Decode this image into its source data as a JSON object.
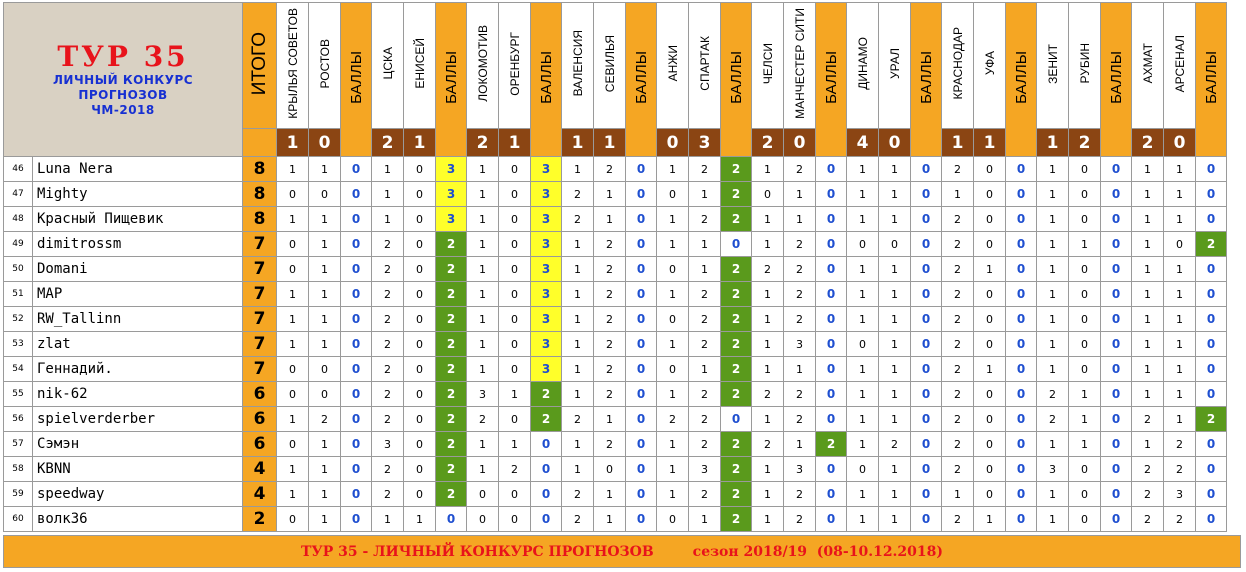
{
  "header": {
    "title": "ТУР  35",
    "subtitle_lines": [
      "ЛИЧНЫЙ  КОНКУРС",
      "ПРОГНОЗОВ",
      "ЧМ-2018"
    ],
    "total_label": "ИТОГО",
    "points_label": "БАЛЛЫ"
  },
  "matches": [
    {
      "home": "КРЫЛЬЯ СОВЕТОВ",
      "away": "РОСТОВ",
      "home_goals": "1",
      "away_goals": "0"
    },
    {
      "home": "ЦСКА",
      "away": "ЕНИСЕЙ",
      "home_goals": "2",
      "away_goals": "1"
    },
    {
      "home": "ЛОКОМОТИВ",
      "away": "ОРЕНБУРГ",
      "home_goals": "2",
      "away_goals": "1"
    },
    {
      "home": "ВАЛЕНСИЯ",
      "away": "СЕВИЛЬЯ",
      "home_goals": "1",
      "away_goals": "1"
    },
    {
      "home": "АНЖИ",
      "away": "СПАРТАК",
      "home_goals": "0",
      "away_goals": "3"
    },
    {
      "home": "ЧЕЛСИ",
      "away": "МАНЧЕСТЕР СИТИ",
      "home_goals": "2",
      "away_goals": "0"
    },
    {
      "home": "ДИНАМО",
      "away": "УРАЛ",
      "home_goals": "4",
      "away_goals": "0"
    },
    {
      "home": "КРАСНОДАР",
      "away": "УФА",
      "home_goals": "1",
      "away_goals": "1"
    },
    {
      "home": "ЗЕНИТ",
      "away": "РУБИН",
      "home_goals": "1",
      "away_goals": "2"
    },
    {
      "home": "АХМАТ",
      "away": "АРСЕНАЛ",
      "home_goals": "2",
      "away_goals": "0"
    }
  ],
  "rows": [
    {
      "num": "46",
      "name": "Luna Nera",
      "total": "8",
      "p": [
        [
          "1",
          "1",
          "0"
        ],
        [
          "1",
          "0",
          "3"
        ],
        [
          "1",
          "0",
          "3"
        ],
        [
          "1",
          "2",
          "0"
        ],
        [
          "1",
          "2",
          "2"
        ],
        [
          "1",
          "2",
          "0"
        ],
        [
          "1",
          "1",
          "0"
        ],
        [
          "2",
          "0",
          "0"
        ],
        [
          "1",
          "0",
          "0"
        ],
        [
          "1",
          "1",
          "0"
        ]
      ]
    },
    {
      "num": "47",
      "name": "Mighty",
      "total": "8",
      "p": [
        [
          "0",
          "0",
          "0"
        ],
        [
          "1",
          "0",
          "3"
        ],
        [
          "1",
          "0",
          "3"
        ],
        [
          "2",
          "1",
          "0"
        ],
        [
          "0",
          "1",
          "2"
        ],
        [
          "0",
          "1",
          "0"
        ],
        [
          "1",
          "1",
          "0"
        ],
        [
          "1",
          "0",
          "0"
        ],
        [
          "1",
          "0",
          "0"
        ],
        [
          "1",
          "1",
          "0"
        ]
      ]
    },
    {
      "num": "48",
      "name": "Красный Пищевик",
      "total": "8",
      "p": [
        [
          "1",
          "1",
          "0"
        ],
        [
          "1",
          "0",
          "3"
        ],
        [
          "1",
          "0",
          "3"
        ],
        [
          "2",
          "1",
          "0"
        ],
        [
          "1",
          "2",
          "2"
        ],
        [
          "1",
          "1",
          "0"
        ],
        [
          "1",
          "1",
          "0"
        ],
        [
          "2",
          "0",
          "0"
        ],
        [
          "1",
          "0",
          "0"
        ],
        [
          "1",
          "1",
          "0"
        ]
      ]
    },
    {
      "num": "49",
      "name": "dimitrossm",
      "total": "7",
      "p": [
        [
          "0",
          "1",
          "0"
        ],
        [
          "2",
          "0",
          "2"
        ],
        [
          "1",
          "0",
          "3"
        ],
        [
          "1",
          "2",
          "0"
        ],
        [
          "1",
          "1",
          "0"
        ],
        [
          "1",
          "2",
          "0"
        ],
        [
          "0",
          "0",
          "0"
        ],
        [
          "2",
          "0",
          "0"
        ],
        [
          "1",
          "1",
          "0"
        ],
        [
          "1",
          "0",
          "2"
        ]
      ]
    },
    {
      "num": "50",
      "name": "Domani",
      "total": "7",
      "p": [
        [
          "0",
          "1",
          "0"
        ],
        [
          "2",
          "0",
          "2"
        ],
        [
          "1",
          "0",
          "3"
        ],
        [
          "1",
          "2",
          "0"
        ],
        [
          "0",
          "1",
          "2"
        ],
        [
          "2",
          "2",
          "0"
        ],
        [
          "1",
          "1",
          "0"
        ],
        [
          "2",
          "1",
          "0"
        ],
        [
          "1",
          "0",
          "0"
        ],
        [
          "1",
          "1",
          "0"
        ]
      ]
    },
    {
      "num": "51",
      "name": "MAP",
      "total": "7",
      "p": [
        [
          "1",
          "1",
          "0"
        ],
        [
          "2",
          "0",
          "2"
        ],
        [
          "1",
          "0",
          "3"
        ],
        [
          "1",
          "2",
          "0"
        ],
        [
          "1",
          "2",
          "2"
        ],
        [
          "1",
          "2",
          "0"
        ],
        [
          "1",
          "1",
          "0"
        ],
        [
          "2",
          "0",
          "0"
        ],
        [
          "1",
          "0",
          "0"
        ],
        [
          "1",
          "1",
          "0"
        ]
      ]
    },
    {
      "num": "52",
      "name": "RW_Tallinn",
      "total": "7",
      "p": [
        [
          "1",
          "1",
          "0"
        ],
        [
          "2",
          "0",
          "2"
        ],
        [
          "1",
          "0",
          "3"
        ],
        [
          "1",
          "2",
          "0"
        ],
        [
          "0",
          "2",
          "2"
        ],
        [
          "1",
          "2",
          "0"
        ],
        [
          "1",
          "1",
          "0"
        ],
        [
          "2",
          "0",
          "0"
        ],
        [
          "1",
          "0",
          "0"
        ],
        [
          "1",
          "1",
          "0"
        ]
      ]
    },
    {
      "num": "53",
      "name": "zlat",
      "total": "7",
      "p": [
        [
          "1",
          "1",
          "0"
        ],
        [
          "2",
          "0",
          "2"
        ],
        [
          "1",
          "0",
          "3"
        ],
        [
          "1",
          "2",
          "0"
        ],
        [
          "1",
          "2",
          "2"
        ],
        [
          "1",
          "3",
          "0"
        ],
        [
          "0",
          "1",
          "0"
        ],
        [
          "2",
          "0",
          "0"
        ],
        [
          "1",
          "0",
          "0"
        ],
        [
          "1",
          "1",
          "0"
        ]
      ]
    },
    {
      "num": "54",
      "name": "Геннадий.",
      "total": "7",
      "p": [
        [
          "0",
          "0",
          "0"
        ],
        [
          "2",
          "0",
          "2"
        ],
        [
          "1",
          "0",
          "3"
        ],
        [
          "1",
          "2",
          "0"
        ],
        [
          "0",
          "1",
          "2"
        ],
        [
          "1",
          "1",
          "0"
        ],
        [
          "1",
          "1",
          "0"
        ],
        [
          "2",
          "1",
          "0"
        ],
        [
          "1",
          "0",
          "0"
        ],
        [
          "1",
          "1",
          "0"
        ]
      ]
    },
    {
      "num": "55",
      "name": "nik-62",
      "total": "6",
      "p": [
        [
          "0",
          "0",
          "0"
        ],
        [
          "2",
          "0",
          "2"
        ],
        [
          "3",
          "1",
          "2"
        ],
        [
          "1",
          "2",
          "0"
        ],
        [
          "1",
          "2",
          "2"
        ],
        [
          "2",
          "2",
          "0"
        ],
        [
          "1",
          "1",
          "0"
        ],
        [
          "2",
          "0",
          "0"
        ],
        [
          "2",
          "1",
          "0"
        ],
        [
          "1",
          "1",
          "0"
        ]
      ]
    },
    {
      "num": "56",
      "name": "spielverderber",
      "total": "6",
      "p": [
        [
          "1",
          "2",
          "0"
        ],
        [
          "2",
          "0",
          "2"
        ],
        [
          "2",
          "0",
          "2"
        ],
        [
          "2",
          "1",
          "0"
        ],
        [
          "2",
          "2",
          "0"
        ],
        [
          "1",
          "2",
          "0"
        ],
        [
          "1",
          "1",
          "0"
        ],
        [
          "2",
          "0",
          "0"
        ],
        [
          "2",
          "1",
          "0"
        ],
        [
          "2",
          "1",
          "2"
        ]
      ]
    },
    {
      "num": "57",
      "name": "Сэмэн",
      "total": "6",
      "p": [
        [
          "0",
          "1",
          "0"
        ],
        [
          "3",
          "0",
          "2"
        ],
        [
          "1",
          "1",
          "0"
        ],
        [
          "1",
          "2",
          "0"
        ],
        [
          "1",
          "2",
          "2"
        ],
        [
          "2",
          "1",
          "2"
        ],
        [
          "1",
          "2",
          "0"
        ],
        [
          "2",
          "0",
          "0"
        ],
        [
          "1",
          "1",
          "0"
        ],
        [
          "1",
          "2",
          "0"
        ]
      ]
    },
    {
      "num": "58",
      "name": "KBNN",
      "total": "4",
      "p": [
        [
          "1",
          "1",
          "0"
        ],
        [
          "2",
          "0",
          "2"
        ],
        [
          "1",
          "2",
          "0"
        ],
        [
          "1",
          "0",
          "0"
        ],
        [
          "1",
          "3",
          "2"
        ],
        [
          "1",
          "3",
          "0"
        ],
        [
          "0",
          "1",
          "0"
        ],
        [
          "2",
          "0",
          "0"
        ],
        [
          "3",
          "0",
          "0"
        ],
        [
          "2",
          "2",
          "0"
        ]
      ]
    },
    {
      "num": "59",
      "name": "speedway",
      "total": "4",
      "p": [
        [
          "1",
          "1",
          "0"
        ],
        [
          "2",
          "0",
          "2"
        ],
        [
          "0",
          "0",
          "0"
        ],
        [
          "2",
          "1",
          "0"
        ],
        [
          "1",
          "2",
          "2"
        ],
        [
          "1",
          "2",
          "0"
        ],
        [
          "1",
          "1",
          "0"
        ],
        [
          "1",
          "0",
          "0"
        ],
        [
          "1",
          "0",
          "0"
        ],
        [
          "2",
          "3",
          "0"
        ]
      ]
    },
    {
      "num": "60",
      "name": "волк36",
      "total": "2",
      "p": [
        [
          "0",
          "1",
          "0"
        ],
        [
          "1",
          "1",
          "0"
        ],
        [
          "0",
          "0",
          "0"
        ],
        [
          "2",
          "1",
          "0"
        ],
        [
          "0",
          "1",
          "2"
        ],
        [
          "1",
          "2",
          "0"
        ],
        [
          "1",
          "1",
          "0"
        ],
        [
          "2",
          "1",
          "0"
        ],
        [
          "1",
          "0",
          "0"
        ],
        [
          "2",
          "2",
          "0"
        ]
      ]
    }
  ],
  "footer": {
    "text": "ТУР 35 - ЛИЧНЫЙ КОНКУРС ПРОГНОЗОВ        сезон 2018/19  (08-10.12.2018)"
  },
  "colors": {
    "orange": "#f5a623",
    "score_brown": "#8b4513",
    "points_blue": "#1f4fd0",
    "highlight_yellow": "#ffff2a",
    "highlight_green": "#5a9a1c",
    "title_red": "#e8131b",
    "subtitle_blue": "#1730d2",
    "title_bg": "#d9d1c3"
  }
}
